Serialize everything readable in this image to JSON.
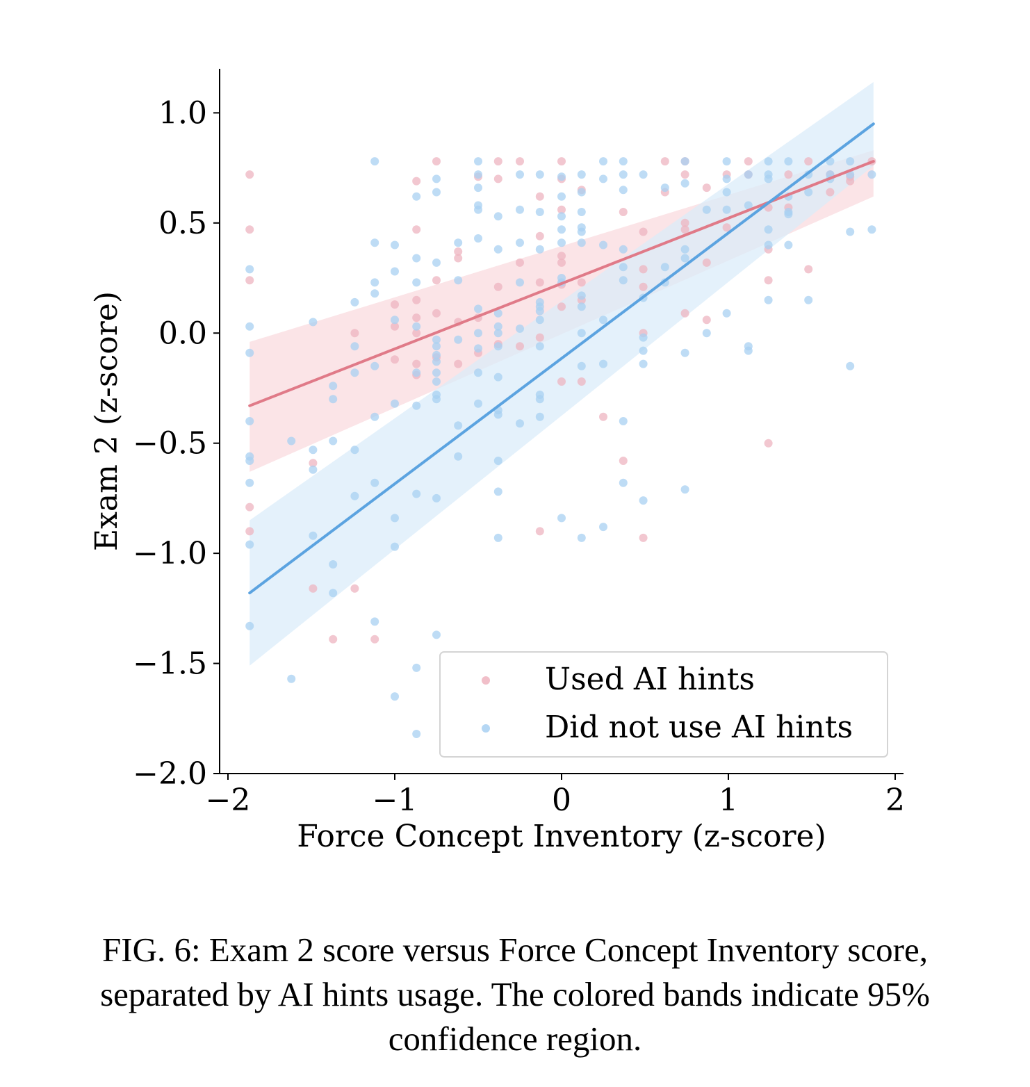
{
  "caption": "FIG. 6: Exam 2 score versus Force Concept Inventory score, separated by AI hints usage. The colored bands indicate 95% confidence region.",
  "chart_data": {
    "type": "scatter",
    "xlabel": "Force Concept Inventory (z-score)",
    "ylabel": "Exam 2 (z-score)",
    "xlim": [
      -2.05,
      2.05
    ],
    "ylim": [
      -2.0,
      1.2
    ],
    "xticks": [
      -2,
      -1,
      0,
      1,
      2
    ],
    "xtick_labels": [
      "−2",
      "−1",
      "0",
      "1",
      "2"
    ],
    "yticks": [
      1.0,
      0.5,
      0.0,
      -0.5,
      -1.0,
      -1.5,
      -2.0
    ],
    "ytick_labels": [
      "1.0",
      "0.5",
      "0.0",
      "−0.5",
      "−1.0",
      "−1.5",
      "−2.0"
    ],
    "grid": false,
    "legend_position": "lower-right",
    "series": [
      {
        "name": "Used AI hints",
        "color": "#e07a88",
        "point_color": "#eeb4c0",
        "band_color": "#f9dade",
        "fit": {
          "x": [
            -1.87,
            1.87
          ],
          "y": [
            -0.33,
            0.78
          ]
        },
        "band": {
          "x": [
            -1.87,
            1.87
          ],
          "upper": [
            -0.04,
            0.83
          ],
          "lower": [
            -0.63,
            0.62
          ]
        },
        "points": [
          [
            -1.87,
            0.72
          ],
          [
            -1.87,
            0.47
          ],
          [
            -1.87,
            0.24
          ],
          [
            -1.87,
            -0.79
          ],
          [
            -1.87,
            -0.9
          ],
          [
            -1.49,
            -0.59
          ],
          [
            -1.49,
            -1.16
          ],
          [
            -1.37,
            -1.39
          ],
          [
            -1.24,
            0.0
          ],
          [
            -1.24,
            -1.16
          ],
          [
            -1.12,
            -1.39
          ],
          [
            -1.0,
            0.13
          ],
          [
            -1.0,
            0.03
          ],
          [
            -1.0,
            -0.12
          ],
          [
            -0.87,
            0.69
          ],
          [
            -0.87,
            0.47
          ],
          [
            -0.87,
            0.15
          ],
          [
            -0.87,
            0.07
          ],
          [
            -0.87,
            -0.0
          ],
          [
            -0.87,
            -0.14
          ],
          [
            -0.87,
            -0.19
          ],
          [
            -0.75,
            0.78
          ],
          [
            -0.75,
            0.24
          ],
          [
            -0.75,
            0.09
          ],
          [
            -0.75,
            -0.11
          ],
          [
            -0.62,
            0.37
          ],
          [
            -0.62,
            0.34
          ],
          [
            -0.62,
            0.05
          ],
          [
            -0.62,
            -0.14
          ],
          [
            -0.5,
            0.71
          ],
          [
            -0.5,
            0.07
          ],
          [
            -0.5,
            -0.09
          ],
          [
            -0.38,
            0.78
          ],
          [
            -0.38,
            0.7
          ],
          [
            -0.38,
            0.21
          ],
          [
            -0.38,
            -0.05
          ],
          [
            -0.25,
            0.78
          ],
          [
            -0.25,
            0.32
          ],
          [
            -0.25,
            -0.06
          ],
          [
            -0.13,
            0.62
          ],
          [
            -0.13,
            0.44
          ],
          [
            -0.13,
            0.23
          ],
          [
            -0.13,
            -0.02
          ],
          [
            -0.13,
            -0.9
          ],
          [
            0.0,
            0.78
          ],
          [
            0.0,
            0.7
          ],
          [
            0.0,
            0.56
          ],
          [
            0.0,
            0.35
          ],
          [
            0.0,
            0.32
          ],
          [
            0.0,
            0.22
          ],
          [
            0.0,
            0.12
          ],
          [
            0.0,
            -0.22
          ],
          [
            0.12,
            0.65
          ],
          [
            0.12,
            0.23
          ],
          [
            0.12,
            0.15
          ],
          [
            0.12,
            -0.22
          ],
          [
            0.25,
            -0.38
          ],
          [
            0.37,
            0.55
          ],
          [
            0.37,
            -0.58
          ],
          [
            0.49,
            0.46
          ],
          [
            0.49,
            0.29
          ],
          [
            0.49,
            0.21
          ],
          [
            0.49,
            -0.0
          ],
          [
            0.49,
            -0.93
          ],
          [
            0.62,
            0.78
          ],
          [
            0.62,
            0.64
          ],
          [
            0.74,
            0.78
          ],
          [
            0.74,
            0.72
          ],
          [
            0.74,
            0.5
          ],
          [
            0.74,
            0.47
          ],
          [
            0.74,
            0.09
          ],
          [
            0.87,
            0.66
          ],
          [
            0.87,
            0.32
          ],
          [
            0.87,
            0.06
          ],
          [
            0.99,
            0.72
          ],
          [
            0.99,
            0.48
          ],
          [
            1.12,
            0.78
          ],
          [
            1.12,
            0.72
          ],
          [
            1.24,
            0.57
          ],
          [
            1.24,
            0.38
          ],
          [
            1.24,
            0.24
          ],
          [
            1.24,
            -0.5
          ],
          [
            1.36,
            0.72
          ],
          [
            1.36,
            0.57
          ],
          [
            1.48,
            0.78
          ],
          [
            1.48,
            0.29
          ],
          [
            1.61,
            0.72
          ],
          [
            1.61,
            0.64
          ],
          [
            1.73,
            0.71
          ],
          [
            1.73,
            0.69
          ],
          [
            1.86,
            0.78
          ]
        ]
      },
      {
        "name": "Did not use AI hints",
        "color": "#5ba3e0",
        "point_color": "#a8d0f2",
        "band_color": "#d9ebfa",
        "fit": {
          "x": [
            -1.87,
            1.87
          ],
          "y": [
            -1.18,
            0.95
          ]
        },
        "band": {
          "x": [
            -1.87,
            1.87
          ],
          "upper": [
            -0.85,
            1.14
          ],
          "lower": [
            -1.51,
            0.76
          ]
        },
        "points": [
          [
            -1.87,
            0.29
          ],
          [
            -1.87,
            0.03
          ],
          [
            -1.87,
            -0.09
          ],
          [
            -1.87,
            -0.4
          ],
          [
            -1.87,
            -0.56
          ],
          [
            -1.87,
            -0.58
          ],
          [
            -1.87,
            -0.68
          ],
          [
            -1.87,
            -0.96
          ],
          [
            -1.87,
            -1.33
          ],
          [
            -1.62,
            -0.49
          ],
          [
            -1.62,
            -1.57
          ],
          [
            -1.49,
            0.05
          ],
          [
            -1.49,
            -0.53
          ],
          [
            -1.49,
            -0.62
          ],
          [
            -1.49,
            -0.92
          ],
          [
            -1.37,
            -0.24
          ],
          [
            -1.37,
            -0.3
          ],
          [
            -1.37,
            -0.49
          ],
          [
            -1.37,
            -1.05
          ],
          [
            -1.37,
            -1.18
          ],
          [
            -1.24,
            0.14
          ],
          [
            -1.24,
            -0.06
          ],
          [
            -1.24,
            -0.18
          ],
          [
            -1.24,
            -0.53
          ],
          [
            -1.24,
            -0.74
          ],
          [
            -1.12,
            0.78
          ],
          [
            -1.12,
            0.41
          ],
          [
            -1.12,
            0.23
          ],
          [
            -1.12,
            0.18
          ],
          [
            -1.12,
            -0.15
          ],
          [
            -1.12,
            -0.38
          ],
          [
            -1.12,
            -0.68
          ],
          [
            -1.12,
            -1.31
          ],
          [
            -1.0,
            0.4
          ],
          [
            -1.0,
            0.28
          ],
          [
            -1.0,
            0.06
          ],
          [
            -1.0,
            -0.32
          ],
          [
            -1.0,
            -0.84
          ],
          [
            -1.0,
            -0.97
          ],
          [
            -1.0,
            -1.65
          ],
          [
            -0.87,
            0.62
          ],
          [
            -0.87,
            0.34
          ],
          [
            -0.87,
            0.23
          ],
          [
            -0.87,
            0.03
          ],
          [
            -0.87,
            -0.18
          ],
          [
            -0.87,
            -0.33
          ],
          [
            -0.87,
            -0.73
          ],
          [
            -0.87,
            -1.52
          ],
          [
            -0.87,
            -1.82
          ],
          [
            -0.75,
            0.7
          ],
          [
            -0.75,
            0.64
          ],
          [
            -0.75,
            0.32
          ],
          [
            -0.75,
            -0.03
          ],
          [
            -0.75,
            -0.06
          ],
          [
            -0.75,
            -0.1
          ],
          [
            -0.75,
            -0.13
          ],
          [
            -0.75,
            -0.18
          ],
          [
            -0.75,
            -0.22
          ],
          [
            -0.75,
            -0.28
          ],
          [
            -0.75,
            -0.3
          ],
          [
            -0.75,
            -0.75
          ],
          [
            -0.75,
            -1.37
          ],
          [
            -0.62,
            0.41
          ],
          [
            -0.62,
            0.24
          ],
          [
            -0.62,
            -0.03
          ],
          [
            -0.62,
            -0.42
          ],
          [
            -0.62,
            -0.56
          ],
          [
            -0.5,
            0.78
          ],
          [
            -0.5,
            0.72
          ],
          [
            -0.5,
            0.66
          ],
          [
            -0.5,
            0.58
          ],
          [
            -0.5,
            0.56
          ],
          [
            -0.5,
            0.43
          ],
          [
            -0.5,
            0.11
          ],
          [
            -0.5,
            0.0
          ],
          [
            -0.5,
            -0.07
          ],
          [
            -0.5,
            -0.18
          ],
          [
            -0.5,
            -0.32
          ],
          [
            -0.38,
            0.53
          ],
          [
            -0.38,
            0.38
          ],
          [
            -0.38,
            0.09
          ],
          [
            -0.38,
            0.03
          ],
          [
            -0.38,
            0.0
          ],
          [
            -0.38,
            -0.06
          ],
          [
            -0.38,
            -0.2
          ],
          [
            -0.38,
            -0.35
          ],
          [
            -0.38,
            -0.37
          ],
          [
            -0.38,
            -0.58
          ],
          [
            -0.38,
            -0.72
          ],
          [
            -0.38,
            -0.93
          ],
          [
            -0.25,
            0.72
          ],
          [
            -0.25,
            0.56
          ],
          [
            -0.25,
            0.41
          ],
          [
            -0.25,
            0.23
          ],
          [
            -0.25,
            0.02
          ],
          [
            -0.25,
            -0.41
          ],
          [
            -0.13,
            0.72
          ],
          [
            -0.13,
            0.55
          ],
          [
            -0.13,
            0.38
          ],
          [
            -0.13,
            0.14
          ],
          [
            -0.13,
            0.12
          ],
          [
            -0.13,
            0.1
          ],
          [
            -0.13,
            0.06
          ],
          [
            -0.13,
            -0.06
          ],
          [
            -0.13,
            -0.28
          ],
          [
            -0.13,
            -0.3
          ],
          [
            -0.13,
            -0.38
          ],
          [
            0.0,
            0.71
          ],
          [
            0.0,
            0.62
          ],
          [
            0.0,
            0.53
          ],
          [
            0.0,
            0.47
          ],
          [
            0.0,
            0.41
          ],
          [
            0.0,
            0.25
          ],
          [
            0.0,
            0.23
          ],
          [
            0.0,
            -0.84
          ],
          [
            0.12,
            0.72
          ],
          [
            0.12,
            0.64
          ],
          [
            0.12,
            0.55
          ],
          [
            0.12,
            0.48
          ],
          [
            0.12,
            0.46
          ],
          [
            0.12,
            0.41
          ],
          [
            0.12,
            0.17
          ],
          [
            0.12,
            0.12
          ],
          [
            0.12,
            0.0
          ],
          [
            0.12,
            -0.15
          ],
          [
            0.12,
            -0.93
          ],
          [
            0.25,
            0.78
          ],
          [
            0.25,
            0.7
          ],
          [
            0.25,
            0.4
          ],
          [
            0.25,
            0.06
          ],
          [
            0.25,
            -0.14
          ],
          [
            0.25,
            -0.88
          ],
          [
            0.37,
            0.78
          ],
          [
            0.37,
            0.72
          ],
          [
            0.37,
            0.65
          ],
          [
            0.37,
            0.38
          ],
          [
            0.37,
            0.3
          ],
          [
            0.37,
            0.24
          ],
          [
            0.37,
            -0.4
          ],
          [
            0.37,
            -0.68
          ],
          [
            0.49,
            0.72
          ],
          [
            0.49,
            0.16
          ],
          [
            0.49,
            -0.02
          ],
          [
            0.49,
            -0.08
          ],
          [
            0.49,
            -0.14
          ],
          [
            0.49,
            -0.76
          ],
          [
            0.62,
            0.66
          ],
          [
            0.62,
            0.3
          ],
          [
            0.62,
            0.23
          ],
          [
            0.74,
            0.78
          ],
          [
            0.74,
            0.68
          ],
          [
            0.74,
            0.38
          ],
          [
            0.74,
            0.34
          ],
          [
            0.74,
            -0.09
          ],
          [
            0.74,
            -0.71
          ],
          [
            0.87,
            0.56
          ],
          [
            0.87,
            0.0
          ],
          [
            0.99,
            0.78
          ],
          [
            0.99,
            0.7
          ],
          [
            0.99,
            0.64
          ],
          [
            0.99,
            0.56
          ],
          [
            0.99,
            0.09
          ],
          [
            1.12,
            0.72
          ],
          [
            1.12,
            0.58
          ],
          [
            1.12,
            -0.06
          ],
          [
            1.12,
            -0.08
          ],
          [
            1.24,
            0.78
          ],
          [
            1.24,
            0.72
          ],
          [
            1.24,
            0.7
          ],
          [
            1.24,
            0.47
          ],
          [
            1.24,
            0.4
          ],
          [
            1.24,
            0.15
          ],
          [
            1.36,
            0.78
          ],
          [
            1.36,
            0.62
          ],
          [
            1.36,
            0.55
          ],
          [
            1.36,
            0.54
          ],
          [
            1.36,
            0.4
          ],
          [
            1.48,
            0.72
          ],
          [
            1.48,
            0.64
          ],
          [
            1.48,
            0.15
          ],
          [
            1.61,
            0.78
          ],
          [
            1.61,
            0.72
          ],
          [
            1.61,
            0.7
          ],
          [
            1.73,
            0.78
          ],
          [
            1.73,
            0.72
          ],
          [
            1.73,
            0.46
          ],
          [
            1.73,
            -0.15
          ],
          [
            1.86,
            0.72
          ],
          [
            1.86,
            0.47
          ]
        ]
      }
    ]
  }
}
